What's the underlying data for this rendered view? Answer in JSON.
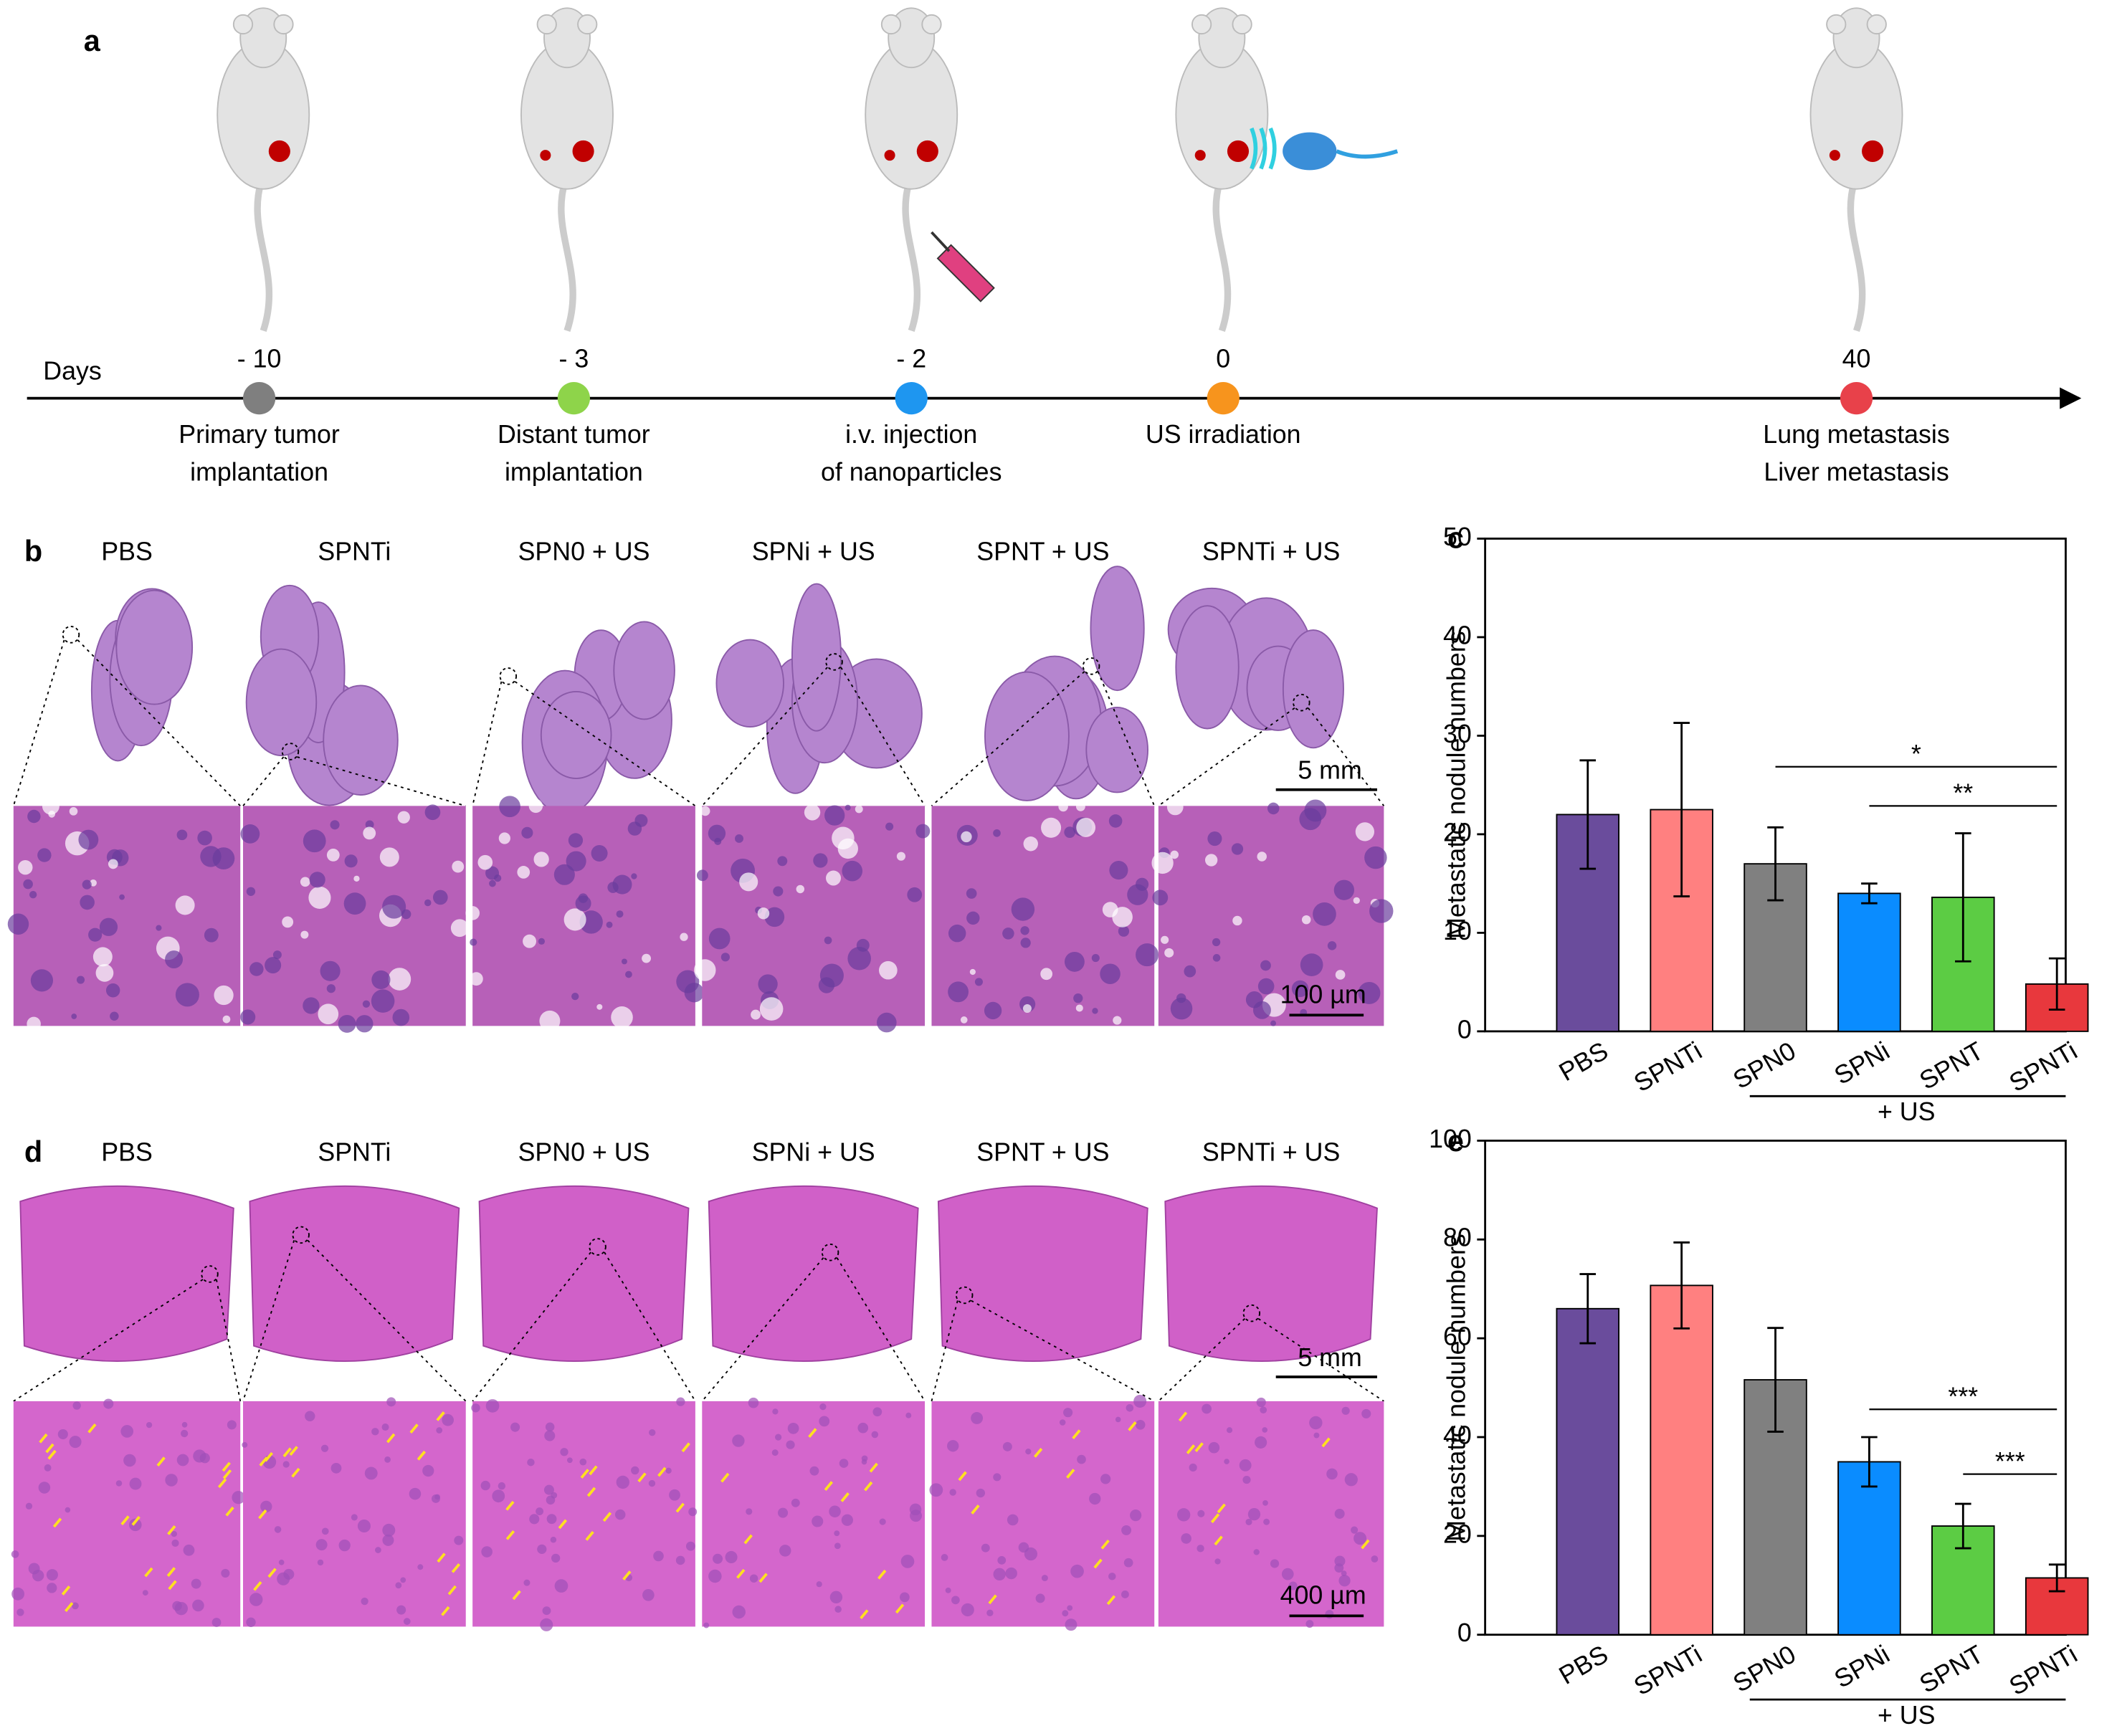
{
  "panel_labels": [
    "a",
    "b",
    "c",
    "d",
    "e"
  ],
  "timeline": {
    "axis_label": "Days",
    "events": [
      {
        "day": "- 10",
        "label": [
          "Primary tumor",
          "implantation"
        ],
        "color": "#7f7f7f"
      },
      {
        "day": "- 3",
        "label": [
          "Distant tumor",
          "implantation"
        ],
        "color": "#8ed44a"
      },
      {
        "day": "- 2",
        "label": [
          "i.v. injection",
          "of nanoparticles"
        ],
        "color": "#1e96f0"
      },
      {
        "day": "0",
        "label": [
          "US irradiation"
        ],
        "color": "#f7941d"
      },
      {
        "day": "40",
        "label": [
          "Lung metastasis",
          "Liver metastasis"
        ],
        "color": "#e8414a"
      }
    ]
  },
  "lung": {
    "groups": [
      "PBS",
      "SPNTi",
      "SPN0 + US",
      "SPNi + US",
      "SPNT + US",
      "SPNTi + US"
    ],
    "scale_overview": "5 mm",
    "scale_zoom": "100 µm"
  },
  "liver": {
    "groups": [
      "PBS",
      "SPNTi",
      "SPN0 + US",
      "SPNi + US",
      "SPNT + US",
      "SPNTi + US"
    ],
    "scale_overview": "5 mm",
    "scale_zoom": "400 µm"
  },
  "chart_data": [
    {
      "type": "bar",
      "y_label": "Metastatic nodule numbers",
      "categories": [
        "PBS",
        "SPNTi",
        "SPN0",
        "SPNi",
        "SPNT",
        "SPNTi"
      ],
      "values": [
        22,
        22.5,
        17,
        14,
        13.6,
        4.8
      ],
      "errors": [
        5.5,
        8.8,
        3.7,
        1,
        6.5,
        2.6
      ],
      "colors": [
        "#6a4c9c",
        "#ff8080",
        "#808080",
        "#0a8cff",
        "#5ccc44",
        "#e8383d"
      ],
      "ylim": [
        0,
        50
      ],
      "yticks": [
        0,
        10,
        20,
        30,
        40,
        50
      ],
      "group_label": "+ US",
      "annotations": [
        {
          "text": "*"
        },
        {
          "text": "**"
        }
      ]
    },
    {
      "type": "bar",
      "y_label": "Metastatic nodule numbers",
      "categories": [
        "PBS",
        "SPNTi",
        "SPN0",
        "SPNi",
        "SPNT",
        "SPNTi"
      ],
      "values": [
        66,
        70.7,
        51.6,
        35,
        22,
        11.5
      ],
      "errors": [
        7,
        8.7,
        10.5,
        5,
        4.5,
        2.7
      ],
      "colors": [
        "#6a4c9c",
        "#ff8080",
        "#808080",
        "#0a8cff",
        "#5ccc44",
        "#e8383d"
      ],
      "ylim": [
        0,
        100
      ],
      "yticks": [
        0,
        20,
        40,
        60,
        80,
        100
      ],
      "group_label": "+ US",
      "annotations": [
        {
          "text": "***"
        },
        {
          "text": "***"
        }
      ]
    }
  ]
}
